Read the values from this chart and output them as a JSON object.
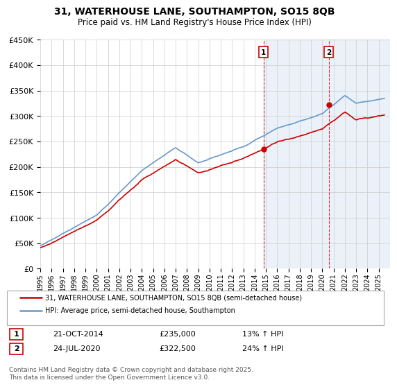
{
  "title_line1": "31, WATERHOUSE LANE, SOUTHAMPTON, SO15 8QB",
  "title_line2": "Price paid vs. HM Land Registry's House Price Index (HPI)",
  "ylim": [
    0,
    450000
  ],
  "yticks": [
    0,
    50000,
    100000,
    150000,
    200000,
    250000,
    300000,
    350000,
    400000,
    450000
  ],
  "xlim_start": 1995,
  "xlim_end": 2026,
  "sale1_date": 2014.8,
  "sale1_price": 235000,
  "sale1_label": "1",
  "sale1_text": "21-OCT-2014",
  "sale1_pct": "13% ↑ HPI",
  "sale2_date": 2020.56,
  "sale2_price": 322500,
  "sale2_label": "2",
  "sale2_text": "24-JUL-2020",
  "sale2_pct": "24% ↑ HPI",
  "red_color": "#cc0000",
  "blue_color": "#6699cc",
  "legend_label1": "31, WATERHOUSE LANE, SOUTHAMPTON, SO15 8QB (semi-detached house)",
  "legend_label2": "HPI: Average price, semi-detached house, Southampton",
  "footer": "Contains HM Land Registry data © Crown copyright and database right 2025.\nThis data is licensed under the Open Government Licence v3.0.",
  "plot_bg": "#ffffff"
}
